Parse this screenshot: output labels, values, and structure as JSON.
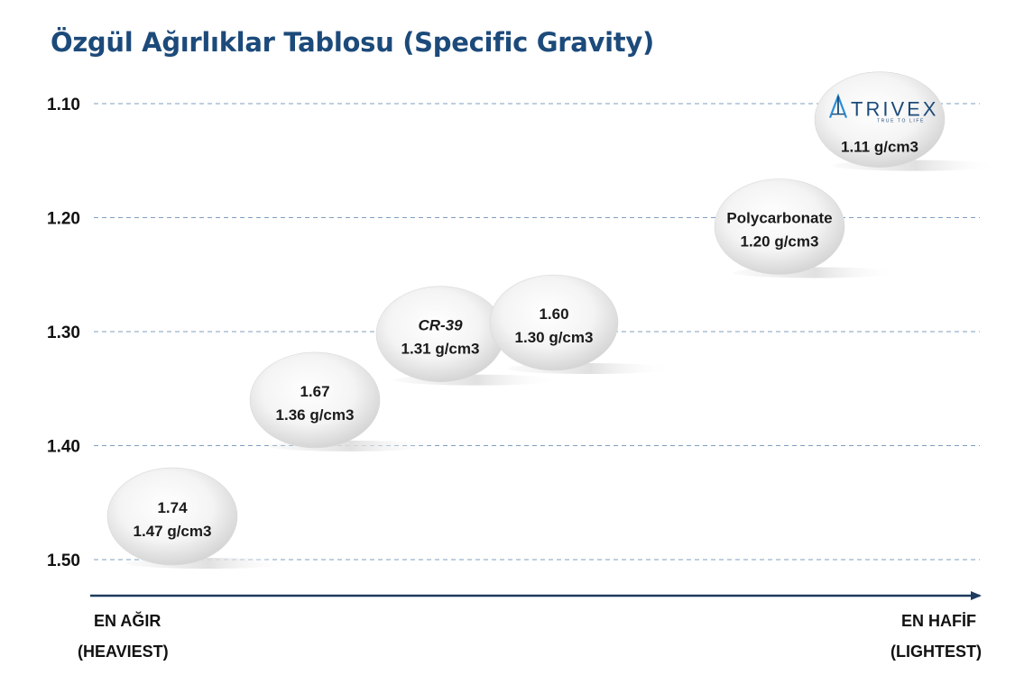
{
  "title": "Özgül Ağırlıklar Tablosu (Specific Gravity)",
  "axis": {
    "left_line1": "EN AĞIR",
    "left_line2": "(HEAVIEST)",
    "right_line1": "EN HAFİF",
    "right_line2": "(LIGHTEST)"
  },
  "colors": {
    "title": "#1c4a7a",
    "grid": "#7f9fbf",
    "axis": "#1f3b5e",
    "bubble_light": "#ffffff",
    "bubble_dark": "#d3d3d3"
  },
  "chart_data": {
    "type": "scatter",
    "title": "Özgül Ağırlıklar Tablosu (Specific Gravity)",
    "y_ticks": [
      "1.10",
      "1.20",
      "1.30",
      "1.40",
      "1.50"
    ],
    "y_tick_values": [
      1.1,
      1.2,
      1.3,
      1.4,
      1.5
    ],
    "ylim": [
      1.1,
      1.5
    ],
    "y_inverted": true,
    "grid": "horizontal dashed",
    "points": [
      {
        "line1": "1.74",
        "line2": "1.47 g/cm3",
        "value": 1.47
      },
      {
        "line1": "1.67",
        "line2": "1.36 g/cm3",
        "value": 1.36
      },
      {
        "line1": "CR-39",
        "line2": "1.31 g/cm3",
        "value": 1.31,
        "italic": true
      },
      {
        "line1": "1.60",
        "line2": "1.30 g/cm3",
        "value": 1.3
      },
      {
        "line1": "Polycarbonate",
        "line2": "1.20 g/cm3",
        "value": 1.2
      },
      {
        "logo": "TRIVEX",
        "logo_icon": "trivex-triangle-icon",
        "logo_tagline": "TRUE TO LIFE",
        "line2": "1.11 g/cm3",
        "value": 1.11
      }
    ]
  }
}
